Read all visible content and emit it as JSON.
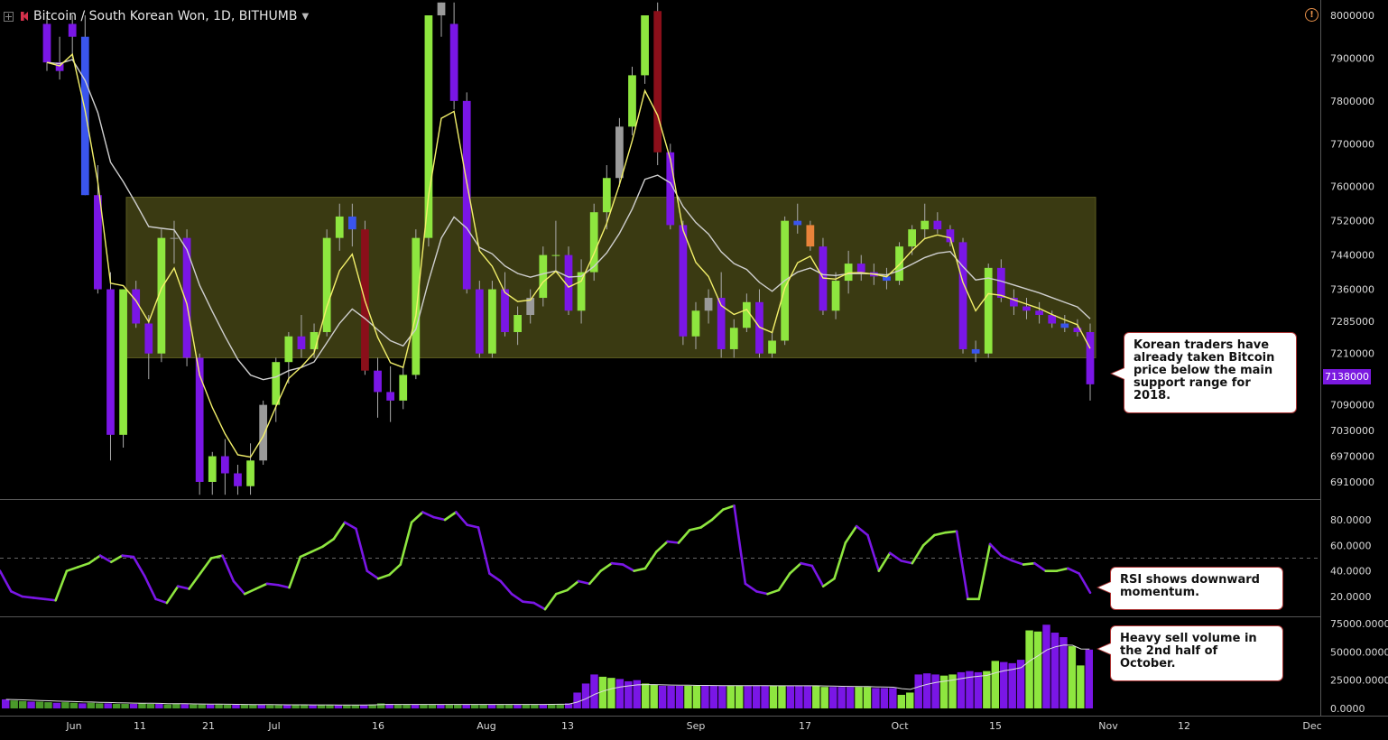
{
  "header": {
    "symbol": "Bitcoin / South Korean Won, 1D, BITHUMB"
  },
  "annotations": [
    {
      "id": "note1",
      "text": "Korean traders have already taken Bitcoin price below the main support range for 2018."
    },
    {
      "id": "note2",
      "text": "RSI shows downward momentum."
    },
    {
      "id": "note3",
      "text": "Heavy sell volume in the 2nd half of October."
    }
  ],
  "last_price_label": "7138000",
  "colors": {
    "up_green": "#8ee63f",
    "down_purple": "#7a16e6",
    "blue": "#3a55ee",
    "gray": "#9a9a9a",
    "maroon": "#8b0f1a",
    "orange": "#e8833a",
    "support_zone": "#3a3a12",
    "ema_fast": "#f3f06a",
    "ema_slow": "#cfcfcf"
  },
  "chart_data": [
    {
      "type": "candlestick",
      "title": "Bitcoin / South Korean Won, 1D, BITHUMB",
      "x_ticks": [
        "Jun",
        "11",
        "21",
        "Jul",
        "16",
        "Aug",
        "13",
        "Sep",
        "17",
        "Oct",
        "15",
        "Nov",
        "12",
        "Dec"
      ],
      "y_ticks": [
        "8000000",
        "7900000",
        "7800000",
        "7700000",
        "7600000",
        "7520000",
        "7440000",
        "7360000",
        "7285000",
        "7210000",
        "7138000",
        "7090000",
        "7030000",
        "6970000",
        "6910000"
      ],
      "ylim": [
        6880000,
        8030000
      ],
      "support_zone": {
        "from": 7200000,
        "to": 7575000
      },
      "last_close": 7138000,
      "candles_ohlc_pts": [
        [
          7980000,
          8000000,
          7870000,
          7890000
        ],
        [
          7890000,
          7950000,
          7850000,
          7870000
        ],
        [
          7980000,
          8000000,
          7900000,
          7950000
        ],
        [
          7950000,
          8000000,
          7580000,
          7580000
        ],
        [
          7580000,
          7650000,
          7350000,
          7360000
        ],
        [
          7360000,
          7400000,
          6960000,
          7020000
        ],
        [
          7020000,
          7360000,
          6990000,
          7360000
        ],
        [
          7360000,
          7380000,
          7270000,
          7280000
        ],
        [
          7280000,
          7300000,
          7150000,
          7210000
        ],
        [
          7210000,
          7500000,
          7190000,
          7480000
        ],
        [
          7480000,
          7520000,
          7420000,
          7480000
        ],
        [
          7480000,
          7500000,
          7180000,
          7200000
        ],
        [
          7200000,
          7210000,
          6880000,
          6910000
        ],
        [
          6910000,
          6980000,
          6880000,
          6970000
        ],
        [
          6970000,
          7010000,
          6880000,
          6930000
        ],
        [
          6930000,
          6950000,
          6880000,
          6900000
        ],
        [
          6900000,
          7000000,
          6880000,
          6960000
        ],
        [
          6960000,
          7100000,
          6950000,
          7090000
        ],
        [
          7090000,
          7200000,
          7050000,
          7190000
        ],
        [
          7190000,
          7260000,
          7140000,
          7250000
        ],
        [
          7250000,
          7300000,
          7200000,
          7220000
        ],
        [
          7220000,
          7280000,
          7200000,
          7260000
        ],
        [
          7260000,
          7500000,
          7250000,
          7480000
        ],
        [
          7480000,
          7560000,
          7450000,
          7530000
        ],
        [
          7530000,
          7560000,
          7460000,
          7500000
        ],
        [
          7500000,
          7520000,
          7160000,
          7170000
        ],
        [
          7170000,
          7200000,
          7060000,
          7120000
        ],
        [
          7120000,
          7180000,
          7050000,
          7100000
        ],
        [
          7100000,
          7180000,
          7080000,
          7160000
        ],
        [
          7160000,
          7500000,
          7150000,
          7480000
        ],
        [
          7480000,
          8000000,
          7460000,
          8000000
        ],
        [
          8000000,
          8030000,
          7950000,
          8030000
        ],
        [
          7980000,
          8030000,
          7780000,
          7800000
        ],
        [
          7800000,
          7820000,
          7350000,
          7360000
        ],
        [
          7360000,
          7380000,
          7200000,
          7210000
        ],
        [
          7210000,
          7380000,
          7200000,
          7360000
        ],
        [
          7360000,
          7400000,
          7250000,
          7260000
        ],
        [
          7260000,
          7320000,
          7230000,
          7300000
        ],
        [
          7300000,
          7360000,
          7280000,
          7340000
        ],
        [
          7340000,
          7460000,
          7320000,
          7440000
        ],
        [
          7440000,
          7520000,
          7400000,
          7440000
        ],
        [
          7440000,
          7460000,
          7300000,
          7310000
        ],
        [
          7310000,
          7430000,
          7280000,
          7400000
        ],
        [
          7400000,
          7560000,
          7380000,
          7540000
        ],
        [
          7540000,
          7650000,
          7500000,
          7620000
        ],
        [
          7620000,
          7760000,
          7600000,
          7740000
        ],
        [
          7740000,
          7880000,
          7720000,
          7860000
        ],
        [
          7860000,
          8000000,
          7840000,
          8000000
        ],
        [
          8010000,
          8030000,
          7650000,
          7680000
        ],
        [
          7680000,
          7700000,
          7500000,
          7510000
        ],
        [
          7510000,
          7520000,
          7230000,
          7250000
        ],
        [
          7250000,
          7330000,
          7220000,
          7310000
        ],
        [
          7310000,
          7360000,
          7280000,
          7340000
        ],
        [
          7340000,
          7400000,
          7200000,
          7220000
        ],
        [
          7220000,
          7290000,
          7200000,
          7270000
        ],
        [
          7270000,
          7350000,
          7260000,
          7330000
        ],
        [
          7330000,
          7360000,
          7200000,
          7210000
        ],
        [
          7210000,
          7260000,
          7200000,
          7240000
        ],
        [
          7240000,
          7530000,
          7230000,
          7520000
        ],
        [
          7520000,
          7560000,
          7490000,
          7510000
        ],
        [
          7510000,
          7520000,
          7450000,
          7460000
        ],
        [
          7460000,
          7480000,
          7300000,
          7310000
        ],
        [
          7310000,
          7400000,
          7290000,
          7380000
        ],
        [
          7380000,
          7450000,
          7350000,
          7420000
        ],
        [
          7420000,
          7440000,
          7380000,
          7400000
        ],
        [
          7400000,
          7420000,
          7370000,
          7390000
        ],
        [
          7390000,
          7410000,
          7360000,
          7380000
        ],
        [
          7380000,
          7470000,
          7370000,
          7460000
        ],
        [
          7460000,
          7510000,
          7440000,
          7500000
        ],
        [
          7500000,
          7560000,
          7480000,
          7520000
        ],
        [
          7520000,
          7540000,
          7490000,
          7500000
        ],
        [
          7500000,
          7510000,
          7460000,
          7470000
        ],
        [
          7470000,
          7480000,
          7210000,
          7220000
        ],
        [
          7220000,
          7240000,
          7190000,
          7210000
        ],
        [
          7210000,
          7420000,
          7200000,
          7410000
        ],
        [
          7410000,
          7430000,
          7330000,
          7340000
        ],
        [
          7340000,
          7360000,
          7300000,
          7320000
        ],
        [
          7320000,
          7340000,
          7290000,
          7310000
        ],
        [
          7310000,
          7330000,
          7280000,
          7300000
        ],
        [
          7300000,
          7310000,
          7270000,
          7280000
        ],
        [
          7280000,
          7300000,
          7260000,
          7270000
        ],
        [
          7270000,
          7290000,
          7250000,
          7260000
        ],
        [
          7260000,
          7280000,
          7100000,
          7138000
        ]
      ]
    },
    {
      "type": "line",
      "name": "RSI",
      "y_ticks": [
        "80.0000",
        "60.0000",
        "40.0000",
        "20.0000"
      ],
      "ylim": [
        5,
        90
      ],
      "reference_level": 50,
      "values": [
        40,
        24,
        20,
        19,
        18,
        17,
        40,
        43,
        46,
        52,
        47,
        52,
        51,
        36,
        18,
        15,
        28,
        26,
        38,
        50,
        52,
        32,
        22,
        26,
        30,
        29,
        27,
        51,
        55,
        59,
        65,
        78,
        73,
        40,
        34,
        37,
        45,
        78,
        86,
        82,
        80,
        86,
        76,
        74,
        38,
        32,
        22,
        16,
        15,
        10,
        22,
        25,
        32,
        30,
        40,
        46,
        45,
        40,
        42,
        55,
        63,
        62,
        72,
        74,
        80,
        88,
        91,
        30,
        24,
        22,
        25,
        38,
        46,
        44,
        28,
        34,
        62,
        75,
        68,
        40,
        54,
        48,
        46,
        60,
        68,
        70,
        71,
        18,
        18,
        61,
        52,
        48,
        45,
        46,
        40,
        40,
        42,
        38,
        23
      ]
    },
    {
      "type": "bar",
      "name": "Volume",
      "y_ticks": [
        "75000.0000",
        "50000.0000",
        "25000.0000",
        "0.0000"
      ],
      "ylim": [
        0,
        78000
      ],
      "values": [
        8000,
        7000,
        6500,
        6000,
        6000,
        5500,
        5000,
        5500,
        5000,
        4500,
        5000,
        4500,
        4500,
        4000,
        4000,
        4000,
        4500,
        4000,
        4000,
        3500,
        4000,
        3800,
        3500,
        3500,
        3500,
        3500,
        3200,
        3200,
        3200,
        3200,
        3200,
        3000,
        3000,
        3000,
        3000,
        3000,
        3000,
        3000,
        3000,
        3000,
        3000,
        3000,
        3000,
        3500,
        4500,
        4000,
        3500,
        3500,
        3500,
        3500,
        3500,
        3500,
        3500,
        3500,
        3500,
        3500,
        3500,
        3500,
        3500,
        3500,
        3500,
        3500,
        3500,
        3500,
        4000,
        4000,
        4500,
        14000,
        22000,
        30000,
        28000,
        27000,
        26000,
        24000,
        25000,
        22000,
        21000,
        20000,
        20000,
        20000,
        20000,
        20000,
        20000,
        20000,
        20000,
        20000,
        20000,
        20000,
        20000,
        20000,
        20000,
        20000,
        20000,
        20000,
        20000,
        20000,
        19000,
        19000,
        19000,
        19000,
        19000,
        19000,
        18000,
        18000,
        18000,
        12000,
        14000,
        30000,
        31000,
        30000,
        29000,
        30000,
        32000,
        33000,
        32000,
        33000,
        42000,
        41000,
        40000,
        43000,
        69000,
        68000,
        74000,
        67000,
        63000,
        55000,
        38000,
        52000
      ]
    }
  ]
}
